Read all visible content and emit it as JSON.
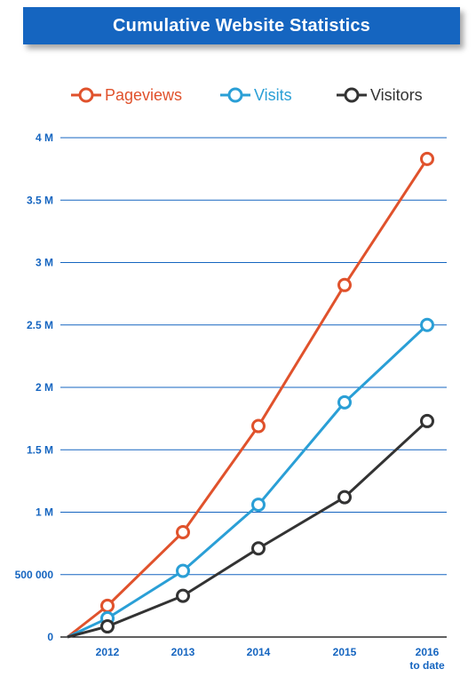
{
  "chart_data": {
    "type": "line",
    "title": "Cumulative Website Statistics",
    "categories": [
      "2012",
      "2013",
      "2014",
      "2015",
      "2016\nto date"
    ],
    "xlabel": "",
    "ylabel": "",
    "ylim": [
      0,
      4000000
    ],
    "yticks": [
      {
        "value": 0,
        "label": "0"
      },
      {
        "value": 500000,
        "label": "500 000"
      },
      {
        "value": 1000000,
        "label": "1 M"
      },
      {
        "value": 1500000,
        "label": "1.5 M"
      },
      {
        "value": 2000000,
        "label": "2 M"
      },
      {
        "value": 2500000,
        "label": "2.5 M"
      },
      {
        "value": 3000000,
        "label": "3 M"
      },
      {
        "value": 3500000,
        "label": "3.5 M"
      },
      {
        "value": 4000000,
        "label": "4 M"
      }
    ],
    "grid": true,
    "legend_position": "top",
    "series": [
      {
        "name": "Pageviews",
        "color": "#e0522c",
        "values": [
          250000,
          840000,
          1690000,
          2820000,
          3830000
        ]
      },
      {
        "name": "Visits",
        "color": "#2a9fd6",
        "values": [
          150000,
          530000,
          1060000,
          1880000,
          2500000
        ]
      },
      {
        "name": "Visitors",
        "color": "#333333",
        "values": [
          85000,
          330000,
          710000,
          1120000,
          1730000
        ]
      }
    ],
    "colors": {
      "title_background": "#1565c0",
      "axis_text": "#1565c0",
      "gridline": "#1565c0"
    }
  }
}
